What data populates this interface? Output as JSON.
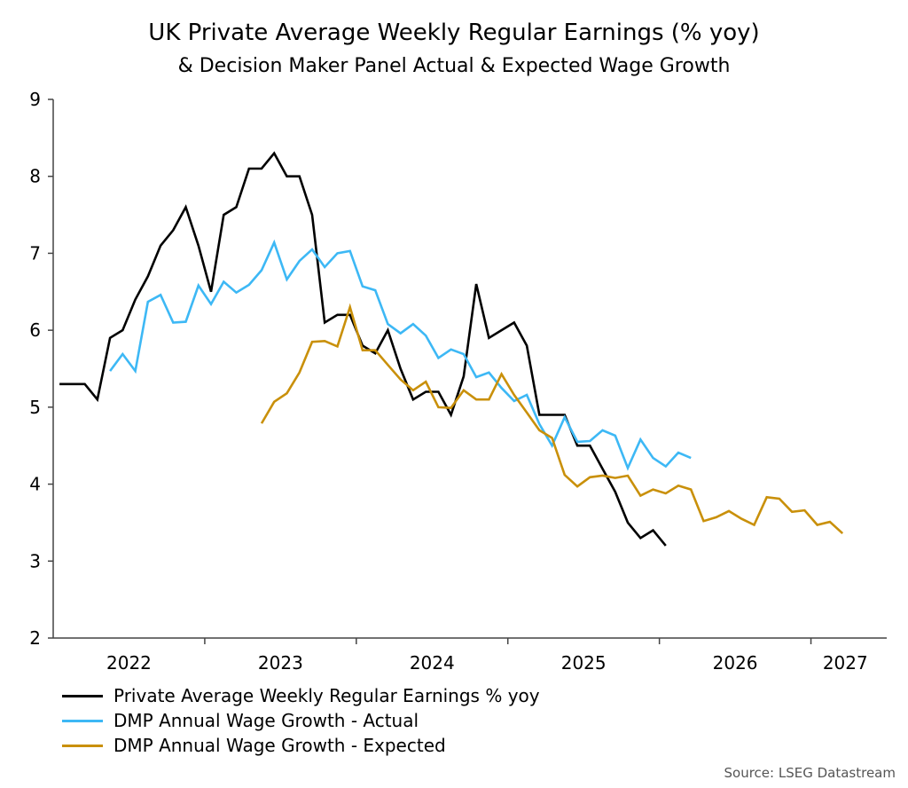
{
  "chart_data": {
    "type": "line",
    "title": "UK Private Average Weekly Regular Earnings (% yoy)",
    "subtitle": "& Decision Maker Panel Actual & Expected Wage Growth",
    "xlabel": "",
    "ylabel": "",
    "ylim": [
      2,
      9
    ],
    "yticks": [
      "2",
      "3",
      "4",
      "5",
      "6",
      "7",
      "8",
      "9"
    ],
    "xlim": [
      "2022-01",
      "2027-06"
    ],
    "xticks": [
      "2022",
      "2023",
      "2024",
      "2025",
      "2026",
      "2027"
    ],
    "grid": false,
    "legend": "bottom-left",
    "series": [
      {
        "name": "Private Average Weekly Regular Earnings % yoy",
        "color": "#000000",
        "start": "2022-01",
        "values": [
          5.3,
          5.3,
          5.3,
          5.1,
          5.9,
          6.0,
          6.4,
          6.7,
          7.1,
          7.3,
          7.6,
          7.1,
          6.5,
          7.5,
          7.6,
          8.1,
          8.1,
          8.3,
          8.0,
          8.0,
          7.5,
          6.1,
          6.2,
          6.2,
          5.8,
          5.7,
          6.0,
          5.5,
          5.1,
          5.2,
          5.2,
          4.9,
          5.4,
          6.6,
          5.9,
          6.0,
          6.1,
          5.8,
          4.9,
          4.9,
          4.9,
          4.5,
          4.5,
          4.2,
          3.9,
          3.5,
          3.3,
          3.4,
          3.2
        ]
      },
      {
        "name": "DMP Annual Wage Growth - Actual",
        "color": "#3db8f5",
        "start": "2022-05",
        "values": [
          5.47,
          5.69,
          5.47,
          6.37,
          6.46,
          6.1,
          6.11,
          6.58,
          6.34,
          6.63,
          6.49,
          6.59,
          6.78,
          7.14,
          6.66,
          6.9,
          7.05,
          6.82,
          7.0,
          7.03,
          6.57,
          6.52,
          6.08,
          5.96,
          6.08,
          5.93,
          5.64,
          5.75,
          5.69,
          5.39,
          5.45,
          5.25,
          5.08,
          5.16,
          4.78,
          4.5,
          4.87,
          4.55,
          4.56,
          4.7,
          4.63,
          4.21,
          4.58,
          4.34,
          4.23,
          4.41,
          4.34
        ]
      },
      {
        "name": "DMP Annual Wage Growth - Expected",
        "color": "#c9900a",
        "start": "2023-05",
        "values": [
          4.79,
          5.07,
          5.18,
          5.45,
          5.85,
          5.86,
          5.79,
          6.3,
          5.74,
          5.74,
          5.55,
          5.36,
          5.22,
          5.33,
          5.0,
          4.99,
          5.22,
          5.1,
          5.1,
          5.43,
          5.16,
          4.93,
          4.7,
          4.6,
          4.12,
          3.97,
          4.09,
          4.11,
          4.08,
          4.11,
          3.85,
          3.93,
          3.88,
          3.98,
          3.93,
          3.52,
          3.57,
          3.65,
          3.55,
          3.47,
          3.83,
          3.81,
          3.64,
          3.66,
          3.47,
          3.51,
          3.36
        ]
      }
    ],
    "source": "Source: LSEG Datastream"
  }
}
